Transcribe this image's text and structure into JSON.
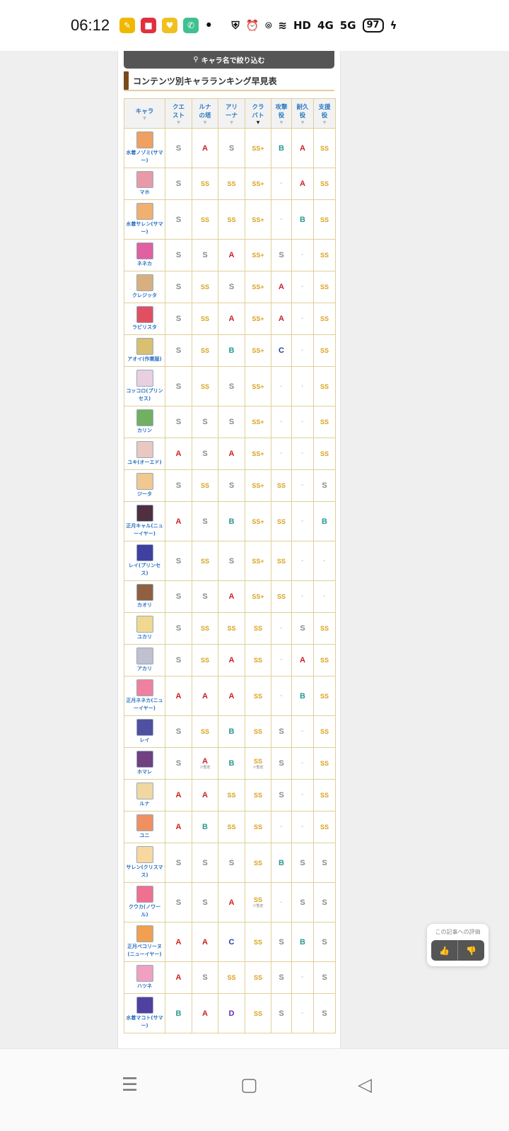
{
  "status_bar": {
    "time": "06:12",
    "network": "HD",
    "signal_4g": "4G",
    "signal_5g": "5G",
    "battery": "97"
  },
  "search": {
    "label": "キャラ名で絞り込む"
  },
  "section": {
    "title": "コンテンツ別キャラランキング早見表"
  },
  "table": {
    "columns": [
      "キャラ",
      "クエスト",
      "ルナの塔",
      "アリーナ",
      "クラバト",
      "攻撃役",
      "耐久役",
      "支援役"
    ],
    "sorted_column": "クラバト",
    "rows": [
      {
        "name": "水着ノゾミ(サマー)",
        "grades": [
          "S",
          "A",
          "S",
          "SS+",
          "B",
          "A",
          "SS"
        ]
      },
      {
        "name": "マホ",
        "grades": [
          "S",
          "SS",
          "SS",
          "SS+",
          "-",
          "A",
          "SS"
        ]
      },
      {
        "name": "水着サレン(サマー)",
        "grades": [
          "S",
          "SS",
          "SS",
          "SS+",
          "-",
          "B",
          "SS"
        ]
      },
      {
        "name": "ネネカ",
        "grades": [
          "S",
          "S",
          "A",
          "SS+",
          "S",
          "-",
          "SS"
        ]
      },
      {
        "name": "クレジッタ",
        "grades": [
          "S",
          "SS",
          "S",
          "SS+",
          "A",
          "-",
          "SS"
        ]
      },
      {
        "name": "ラビリスタ",
        "grades": [
          "S",
          "SS",
          "A",
          "SS+",
          "A",
          "-",
          "SS"
        ]
      },
      {
        "name": "アオイ(作業服)",
        "grades": [
          "S",
          "SS",
          "B",
          "SS+",
          "C",
          "-",
          "SS"
        ]
      },
      {
        "name": "コッコロ(プリンセス)",
        "grades": [
          "S",
          "SS",
          "S",
          "SS+",
          "-",
          "-",
          "SS"
        ]
      },
      {
        "name": "カリン",
        "grades": [
          "S",
          "S",
          "S",
          "SS+",
          "-",
          "-",
          "SS"
        ]
      },
      {
        "name": "ユキ(オーエド)",
        "grades": [
          "A",
          "S",
          "A",
          "SS+",
          "-",
          "-",
          "SS"
        ]
      },
      {
        "name": "ジータ",
        "grades": [
          "S",
          "SS",
          "S",
          "SS+",
          "SS",
          "-",
          "S"
        ]
      },
      {
        "name": "正月キャル(ニューイヤー)",
        "grades": [
          "A",
          "S",
          "B",
          "SS+",
          "SS",
          "-",
          "B"
        ]
      },
      {
        "name": "レイ(プリンセス)",
        "grades": [
          "S",
          "SS",
          "S",
          "SS+",
          "SS",
          "-",
          "-"
        ]
      },
      {
        "name": "カオリ",
        "grades": [
          "S",
          "S",
          "A",
          "SS+",
          "SS",
          "-",
          "-"
        ]
      },
      {
        "name": "ユカリ",
        "grades": [
          "S",
          "SS",
          "SS",
          "SS",
          "-",
          "S",
          "SS"
        ]
      },
      {
        "name": "アカリ",
        "grades": [
          "S",
          "SS",
          "A",
          "SS",
          "-",
          "A",
          "SS"
        ]
      },
      {
        "name": "正月ネネカ(ニューイヤー)",
        "grades": [
          "A",
          "A",
          "A",
          "SS",
          "-",
          "B",
          "SS"
        ]
      },
      {
        "name": "レイ",
        "grades": [
          "S",
          "SS",
          "B",
          "SS",
          "S",
          "-",
          "SS"
        ]
      },
      {
        "name": "ホマレ",
        "grades": [
          "S",
          "A",
          "B",
          "SS",
          "S",
          "-",
          "SS"
        ],
        "notes": {
          "1": "※暫定",
          "3": "※暫定"
        }
      },
      {
        "name": "ルナ",
        "grades": [
          "A",
          "A",
          "SS",
          "SS",
          "S",
          "-",
          "SS"
        ]
      },
      {
        "name": "ユニ",
        "grades": [
          "A",
          "B",
          "SS",
          "SS",
          "-",
          "-",
          "SS"
        ]
      },
      {
        "name": "サレン(クリスマス)",
        "grades": [
          "S",
          "S",
          "S",
          "SS",
          "B",
          "S",
          "S"
        ]
      },
      {
        "name": "クウカ(ノワール)",
        "grades": [
          "S",
          "S",
          "A",
          "SS",
          "-",
          "S",
          "S"
        ],
        "notes": {
          "3": "※暫定"
        }
      },
      {
        "name": "正月ペコリーヌ(ニューイヤー)",
        "grades": [
          "A",
          "A",
          "C",
          "SS",
          "S",
          "B",
          "S"
        ]
      },
      {
        "name": "ハツネ",
        "grades": [
          "A",
          "S",
          "SS",
          "SS",
          "S",
          "-",
          "S"
        ]
      },
      {
        "name": "水着マコト(サマー)",
        "grades": [
          "B",
          "A",
          "D",
          "SS",
          "S",
          "-",
          "S"
        ]
      }
    ]
  },
  "grade_colors": {
    "SS+": "#d9a21c",
    "SS": "#d9a21c",
    "S": "#8a8a8a",
    "A": "#cc2020",
    "B": "#2a9a8c",
    "C": "#2a3a9a",
    "D": "#6a2aaa",
    "-": "#c8c8c8"
  },
  "rating_widget": {
    "label": "この記事への評価",
    "like_icon": "thumbs-up-icon",
    "dislike_icon": "thumbs-down-icon"
  },
  "avatar_colors": [
    "#f0a060",
    "#e89aa8",
    "#f0b070",
    "#e060a0",
    "#d8b080",
    "#e05060",
    "#d8c070",
    "#e8d0e0",
    "#70b060",
    "#e8c8c0",
    "#f0c890",
    "#503040",
    "#4040a0",
    "#906040",
    "#f0d890",
    "#c0c0d0",
    "#f080a0",
    "#5050a0",
    "#704080",
    "#f0d8a0",
    "#f09060",
    "#f8d8a0",
    "#f07090",
    "#f0a050",
    "#f0a0c0",
    "#5040a0"
  ]
}
